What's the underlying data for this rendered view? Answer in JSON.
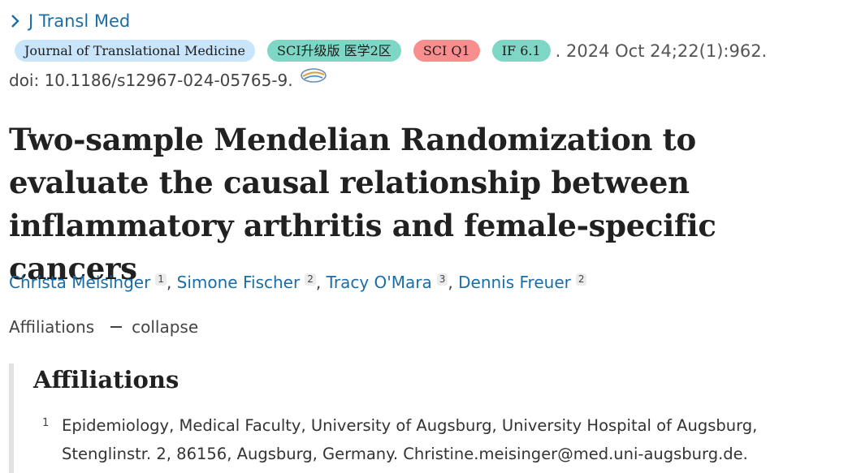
{
  "journal_link": {
    "label": "J Transl Med"
  },
  "badges": {
    "journal_name": "Journal of Translational Medicine",
    "sci_upgrade": "SCI升级版 医学2区",
    "sci_quartile": "SCI Q1",
    "impact_factor": "IF 6.1"
  },
  "citation": {
    "date_volume": ". 2024 Oct 24;22(1):962.",
    "doi": "doi: 10.1186/s12967-024-05765-9."
  },
  "article": {
    "title": "Two-sample Mendelian Randomization to evaluate the causal relationship between inflammatory arthritis and female-specific cancers"
  },
  "authors": [
    {
      "name": "Christa Meisinger",
      "affil": "1"
    },
    {
      "name": "Simone Fischer",
      "affil": "2"
    },
    {
      "name": "Tracy O'Mara",
      "affil": "3"
    },
    {
      "name": "Dennis Freuer",
      "affil": "2"
    }
  ],
  "affiliations_toggle": {
    "label": "Affiliations",
    "action": "collapse"
  },
  "affiliations_panel": {
    "heading": "Affiliations",
    "items": [
      {
        "number": "1",
        "text": "Epidemiology, Medical Faculty, University of Augsburg, University Hospital of Augsburg, Stenglinstr. 2, 86156, Augsburg, Germany. Christine.meisinger@med.uni-augsburg.de."
      }
    ]
  },
  "colors": {
    "link_blue": "#1a6ea8",
    "badge_light_blue": "#c8e5fb",
    "badge_teal": "#7ed6c4",
    "badge_red": "#f98e8e"
  },
  "icons": {
    "journal_chevron": "chevron-right-icon",
    "doi_link": "external-link-icon"
  }
}
